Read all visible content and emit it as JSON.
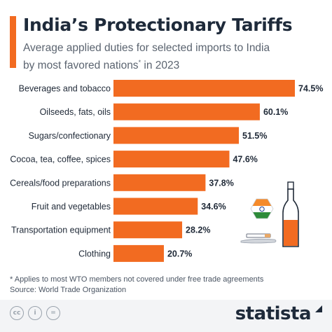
{
  "header": {
    "title": "India’s Protectionary Tariffs",
    "subtitle_line1": "Average applied duties for selected imports to India",
    "subtitle_line2_pre": "by most favored nations",
    "subtitle_marker": "*",
    "subtitle_line2_post": " in 2023"
  },
  "chart_data": {
    "type": "bar",
    "orientation": "horizontal",
    "categories": [
      "Beverages and tobacco",
      "Oilseeds, fats, oils",
      "Sugars/confectionary",
      "Cocoa, tea, coffee, spices",
      "Cereals/food preparations",
      "Fruit and vegetables",
      "Transportation equipment",
      "Clothing"
    ],
    "values": [
      74.5,
      60.1,
      51.5,
      47.6,
      37.8,
      34.6,
      28.2,
      20.7
    ],
    "value_labels": [
      "74.5%",
      "60.1%",
      "51.5%",
      "47.6%",
      "37.8%",
      "34.6%",
      "28.2%",
      "20.7%"
    ],
    "xlim": [
      0,
      74.5
    ],
    "grid": false,
    "bar_color": "#f26b21"
  },
  "footer": {
    "footnote": "* Applies to most WTO members not covered under free trade agreements",
    "source": "Source: World Trade Organization",
    "license_icons": [
      "cc",
      "i",
      "="
    ],
    "brand": "statista"
  },
  "colors": {
    "accent": "#f26b21",
    "title": "#1e2a3a",
    "subtitle": "#5b6470",
    "footer_bg": "#f3f4f6"
  },
  "illustration": {
    "icons": [
      "india-flag-icon",
      "bottle-icon",
      "cigarette-icon"
    ]
  }
}
